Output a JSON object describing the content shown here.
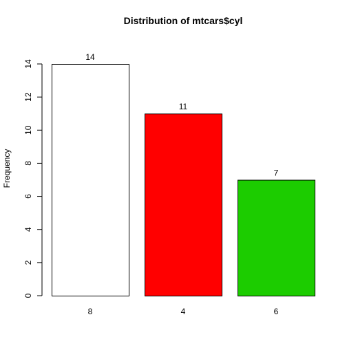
{
  "chart_data": {
    "type": "bar",
    "title": "Distribution of mtcars$cyl",
    "xlabel": "",
    "ylabel": "Frequency",
    "categories": [
      "8",
      "4",
      "6"
    ],
    "values": [
      14,
      11,
      7
    ],
    "data_labels": [
      "14",
      "11",
      "7"
    ],
    "colors": [
      "#FFFFFF",
      "#FF0000",
      "#1CCC00"
    ],
    "bar_border_color": "#000000",
    "ylim": [
      0,
      14
    ],
    "yticks": [
      0,
      2,
      4,
      6,
      8,
      10,
      12,
      14
    ],
    "ytick_labels": [
      "0",
      "2",
      "4",
      "6",
      "8",
      "10",
      "12",
      "14"
    ],
    "grid": false,
    "legend": "none"
  }
}
